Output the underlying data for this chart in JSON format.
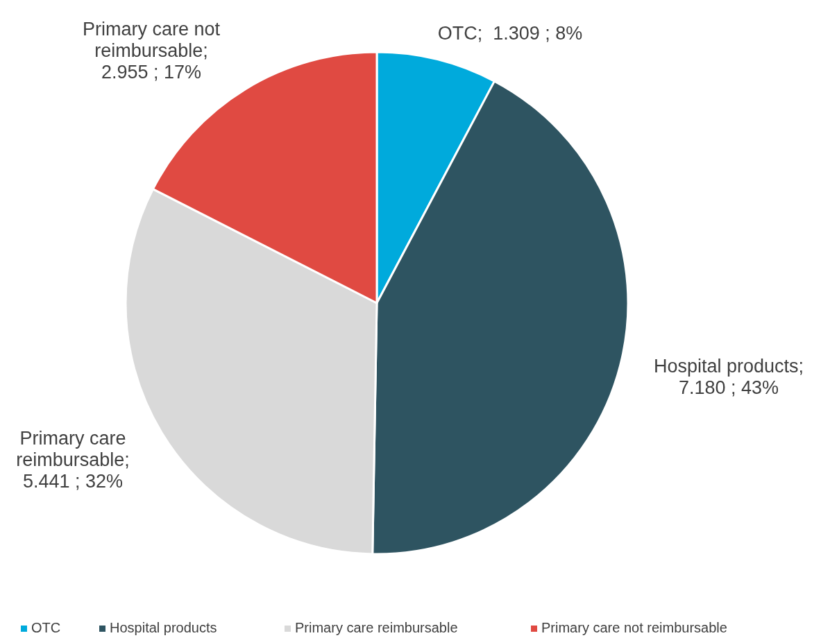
{
  "chart_data": {
    "type": "pie",
    "categories": [
      "OTC",
      "Hospital products",
      "Primary care reimbursable",
      "Primary care not reimbursable"
    ],
    "values": [
      1.309,
      7.18,
      5.441,
      2.955
    ],
    "colors": [
      "#00aadc",
      "#2e5461",
      "#d9d9d9",
      "#e04a42"
    ],
    "value_labels": [
      "OTC;  1.309 ; 8%",
      "Hospital products; 7.180 ; 43%",
      "Primary care reimbursable; 5.441 ; 32%",
      "Primary care not reimbursable; 2.955 ; 17%"
    ],
    "legend": "bottom"
  }
}
